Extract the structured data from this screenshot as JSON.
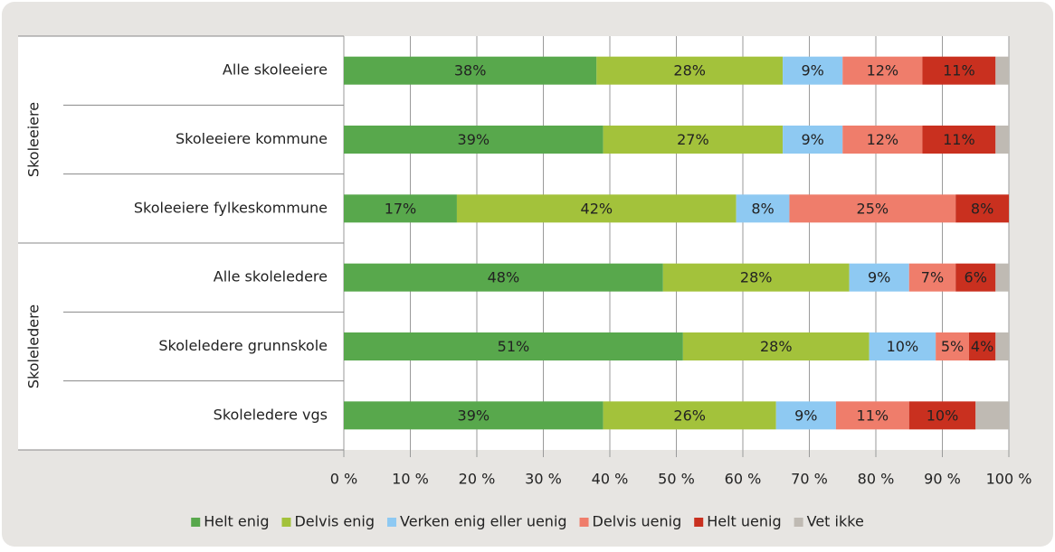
{
  "chart_data": {
    "type": "stacked_bar_horizontal",
    "groups": [
      {
        "name": "Skoleeiere",
        "categories": [
          "Alle skoleeiere",
          "Skoleeiere kommune",
          "Skoleeiere fylkeskommune"
        ]
      },
      {
        "name": "Skoleledere",
        "categories": [
          "Alle skoleledere",
          "Skoleledere grunnskole",
          "Skoleledere vgs"
        ]
      }
    ],
    "series": [
      {
        "name": "Helt enig",
        "color": "#58a84c",
        "values": [
          38,
          39,
          17,
          48,
          51,
          39
        ],
        "value_labels": [
          "38%",
          "39%",
          "17%",
          "48%",
          "51%",
          "39%"
        ]
      },
      {
        "name": "Delvis enig",
        "color": "#a3c23b",
        "values": [
          28,
          27,
          42,
          28,
          28,
          26
        ],
        "value_labels": [
          "28%",
          "27%",
          "42%",
          "28%",
          "28%",
          "26%"
        ]
      },
      {
        "name": "Verken enig eller uenig",
        "color": "#8ec9f2",
        "values": [
          9,
          9,
          8,
          9,
          10,
          9
        ],
        "value_labels": [
          "9%",
          "9%",
          "8%",
          "9%",
          "10%",
          "9%"
        ]
      },
      {
        "name": "Delvis uenig",
        "color": "#ef7d6b",
        "values": [
          12,
          12,
          25,
          7,
          5,
          11
        ],
        "value_labels": [
          "12%",
          "12%",
          "25%",
          "7%",
          "5%",
          "11%"
        ]
      },
      {
        "name": "Helt uenig",
        "color": "#c9301f",
        "values": [
          11,
          11,
          8,
          6,
          4,
          10
        ],
        "value_labels": [
          "11%",
          "11%",
          "8%",
          "6%",
          "4%",
          "10%"
        ]
      },
      {
        "name": "Vet ikke",
        "color": "#bfbab3",
        "values": [
          2,
          2,
          0,
          2,
          2,
          5
        ]
      }
    ],
    "xlim": [
      0,
      100
    ],
    "xticks": [
      {
        "value": 0,
        "label": "0 %"
      },
      {
        "value": 10,
        "label": "10 %"
      },
      {
        "value": 20,
        "label": "20 %"
      },
      {
        "value": 30,
        "label": "30 %"
      },
      {
        "value": 40,
        "label": "40 %"
      },
      {
        "value": 50,
        "label": "50 %"
      },
      {
        "value": 60,
        "label": "60 %"
      },
      {
        "value": 70,
        "label": "70 %"
      },
      {
        "value": 80,
        "label": "80 %"
      },
      {
        "value": 90,
        "label": "90 %"
      },
      {
        "value": 100,
        "label": "100 %"
      }
    ],
    "grid": true,
    "legend": "bottom"
  }
}
